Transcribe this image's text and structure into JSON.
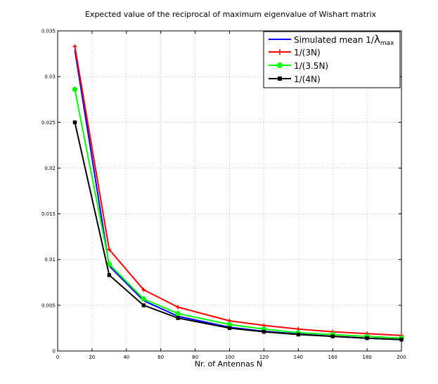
{
  "chart_data": {
    "type": "line",
    "title": "Expected value of the reciprocal of maximum eigenvalue of Wishart matrix",
    "xlabel": "Nr. of Antennas  N",
    "ylabel": "",
    "xlim": [
      0,
      200
    ],
    "ylim": [
      0,
      0.035
    ],
    "xticks": [
      0,
      20,
      40,
      60,
      80,
      100,
      120,
      140,
      160,
      180,
      200
    ],
    "yticks": [
      0,
      0.005,
      0.01,
      0.015,
      0.02,
      0.025,
      0.03,
      0.035
    ],
    "ytick_labels": [
      "0",
      "0.005",
      "0.01",
      "0.015",
      "0.02",
      "0.025",
      "0.03",
      "0.035"
    ],
    "grid": true,
    "legend_position": "top-right",
    "x": [
      10,
      30,
      50,
      70,
      100,
      120,
      140,
      160,
      180,
      200
    ],
    "series": [
      {
        "name": "Simulated mean 1/",
        "name_symbol": "λ",
        "name_subscript": "max",
        "color": "#0000ff",
        "marker": "none",
        "values": [
          0.0329,
          0.0093,
          0.0055,
          0.0038,
          0.0026,
          0.00215,
          0.00185,
          0.0016,
          0.0014,
          0.00125
        ]
      },
      {
        "name": "1/(3N)",
        "color": "#ff0000",
        "marker": "plus",
        "values": [
          0.0333,
          0.0111,
          0.0067,
          0.0048,
          0.0033,
          0.0028,
          0.0024,
          0.0021,
          0.0019,
          0.0017
        ]
      },
      {
        "name": "1/(3.5N)",
        "color": "#00ff00",
        "marker": "circle",
        "values": [
          0.0286,
          0.0095,
          0.0057,
          0.0041,
          0.0029,
          0.0024,
          0.002,
          0.0018,
          0.0016,
          0.0014
        ]
      },
      {
        "name": "1/(4N)",
        "color": "#000000",
        "marker": "square",
        "values": [
          0.025,
          0.0083,
          0.005,
          0.0036,
          0.0025,
          0.0021,
          0.0018,
          0.0016,
          0.0014,
          0.00125
        ]
      }
    ]
  }
}
